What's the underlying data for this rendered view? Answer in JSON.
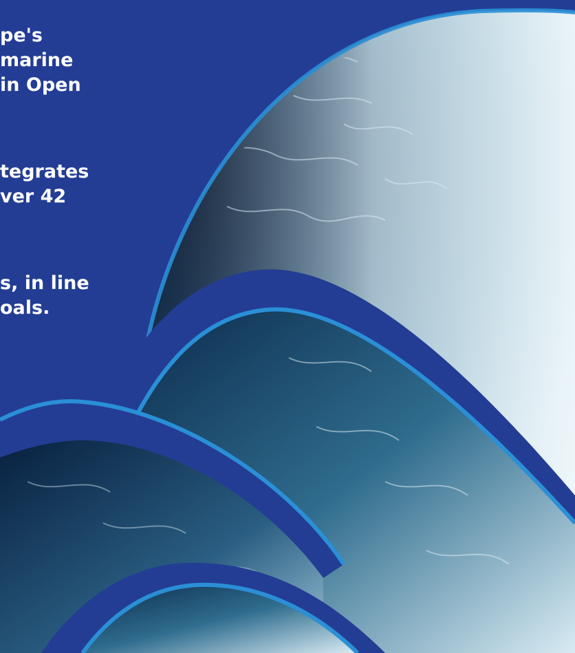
{
  "text_fragments": [
    "pe's",
    "marine",
    "in Open",
    "tegrates",
    "ver 42",
    "s, in line",
    "oals."
  ],
  "colors": {
    "background": "#233d94",
    "accent_stripe": "#2a8fd6",
    "deep_water": "#071a33",
    "foam": "#dfeef5",
    "text": "#ffffff"
  }
}
